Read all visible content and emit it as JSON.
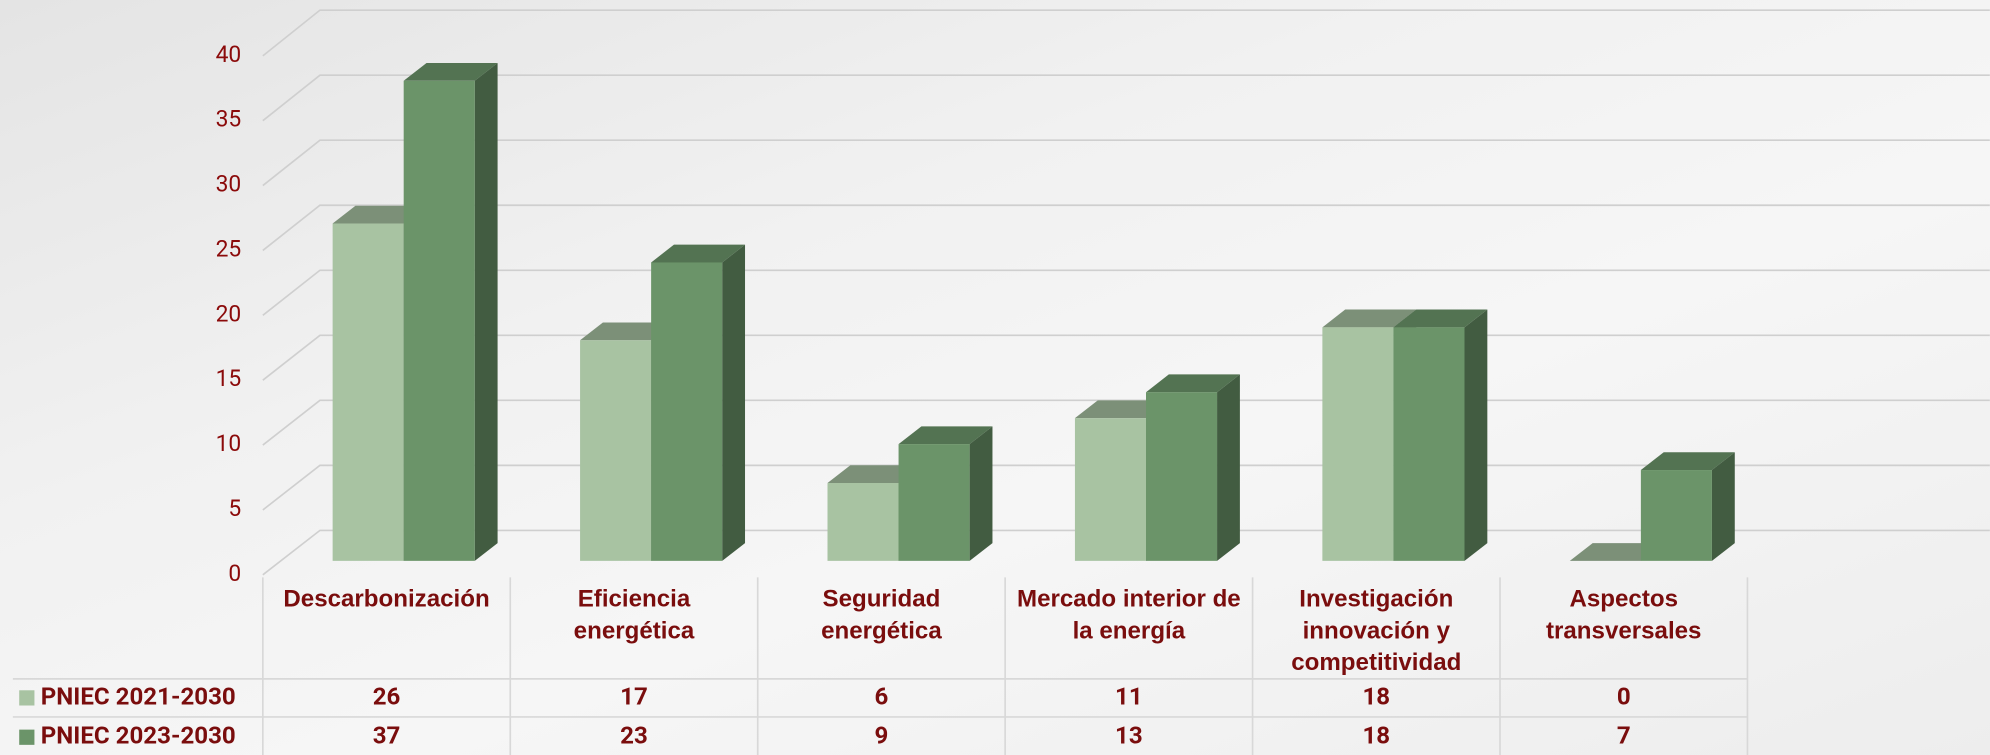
{
  "chart_data": {
    "type": "bar3d",
    "categories": [
      "Descarbonización",
      "Eficiencia energética",
      "Seguridad energética",
      "Mercado interior de la energía",
      "Investigación innovación y competitividad",
      "Aspectos transversales"
    ],
    "series": [
      {
        "name": "PNIEC 2021-2030",
        "color": "#a8c3a2",
        "values": [
          26,
          17,
          6,
          11,
          18,
          0
        ]
      },
      {
        "name": "PNIEC 2023-2030",
        "color": "#6b9469",
        "values": [
          37,
          23,
          9,
          13,
          18,
          7
        ]
      }
    ],
    "ylim": [
      0,
      40
    ],
    "yticks": [
      0,
      5,
      10,
      15,
      20,
      25,
      30,
      35,
      40
    ],
    "grid": true,
    "data_table": true
  }
}
